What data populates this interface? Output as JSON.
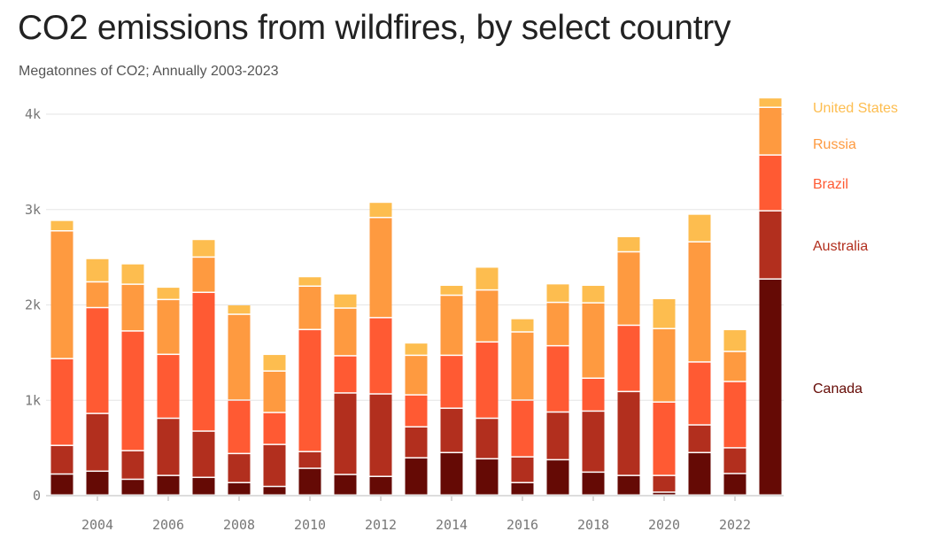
{
  "title": "CO2 emissions from wildfires, by select country",
  "subtitle": "Megatonnes of CO2; Annually 2003-2023",
  "chart_data": {
    "type": "bar",
    "stacked": true,
    "title": "CO2 emissions from wildfires, by select country",
    "subtitle": "Megatonnes of CO2; Annually 2003-2023",
    "categories": [
      2003,
      2004,
      2005,
      2006,
      2007,
      2008,
      2009,
      2010,
      2011,
      2012,
      2013,
      2014,
      2015,
      2016,
      2017,
      2018,
      2019,
      2020,
      2021,
      2022,
      2023
    ],
    "x_tick_labels": [
      "2004",
      "2006",
      "2008",
      "2010",
      "2012",
      "2014",
      "2016",
      "2018",
      "2020",
      "2022"
    ],
    "y_tick_values": [
      0,
      1000,
      2000,
      3000,
      4000
    ],
    "y_tick_labels": [
      "0",
      "1k",
      "2k",
      "3k",
      "4k"
    ],
    "ylim": [
      0,
      4200
    ],
    "grid": true,
    "legend_placement": "right",
    "series": [
      {
        "name": "Canada",
        "color": "#650a05",
        "values": [
          220,
          250,
          165,
          205,
          185,
          130,
          90,
          280,
          215,
          195,
          390,
          445,
          380,
          130,
          370,
          240,
          205,
          30,
          445,
          225,
          2265
        ]
      },
      {
        "name": "Australia",
        "color": "#b22f1e",
        "values": [
          300,
          605,
          300,
          600,
          485,
          305,
          440,
          175,
          855,
          865,
          325,
          465,
          425,
          270,
          500,
          640,
          880,
          175,
          290,
          270,
          715
        ]
      },
      {
        "name": "Brazil",
        "color": "#ff5a33",
        "values": [
          910,
          1110,
          1255,
          670,
          1455,
          560,
          335,
          1280,
          390,
          800,
          335,
          555,
          800,
          595,
          695,
          345,
          695,
          770,
          660,
          695,
          585
        ]
      },
      {
        "name": "Russia",
        "color": "#fe9a40",
        "values": [
          1340,
          270,
          490,
          575,
          370,
          900,
          435,
          455,
          500,
          1050,
          415,
          630,
          545,
          715,
          455,
          790,
          770,
          770,
          1260,
          315,
          500
        ]
      },
      {
        "name": "United States",
        "color": "#fdbd4f",
        "values": [
          110,
          245,
          215,
          130,
          185,
          100,
          175,
          100,
          150,
          160,
          130,
          105,
          240,
          140,
          195,
          185,
          160,
          315,
          290,
          230,
          100
        ]
      }
    ]
  }
}
